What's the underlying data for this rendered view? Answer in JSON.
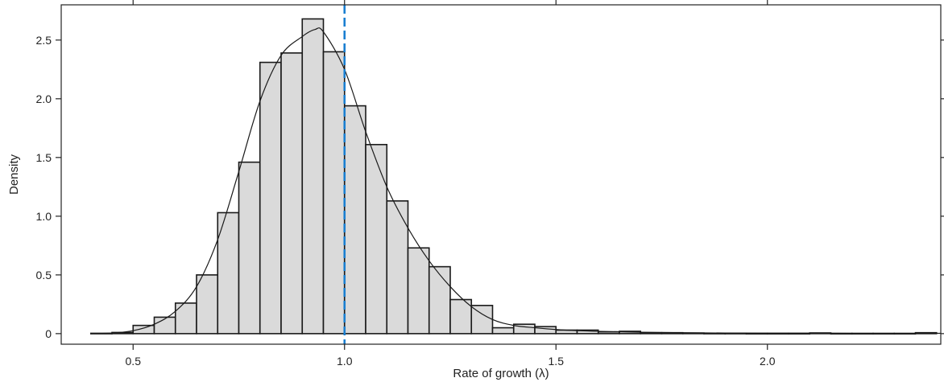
{
  "chart_data": {
    "type": "bar",
    "title": "",
    "xlabel": "Rate of growth (λ)",
    "ylabel": "Density",
    "xlim": [
      0.33,
      2.41
    ],
    "ylim": [
      -0.09,
      2.8
    ],
    "xticks": [
      {
        "value": 0.5,
        "label": "0.5"
      },
      {
        "value": 1.0,
        "label": "1.0"
      },
      {
        "value": 1.5,
        "label": "1.5"
      },
      {
        "value": 2.0,
        "label": "2.0"
      }
    ],
    "yticks": [
      {
        "value": 0,
        "label": "0"
      },
      {
        "value": 0.5,
        "label": "0.5"
      },
      {
        "value": 1.0,
        "label": "1.0"
      },
      {
        "value": 1.5,
        "label": "1.5"
      },
      {
        "value": 2.0,
        "label": "2.0"
      },
      {
        "value": 2.5,
        "label": "2.5"
      }
    ],
    "grid": false,
    "bin_width": 0.05,
    "bins": [
      {
        "x0": 0.4,
        "value": 0.003
      },
      {
        "x0": 0.45,
        "value": 0.01
      },
      {
        "x0": 0.5,
        "value": 0.07
      },
      {
        "x0": 0.55,
        "value": 0.14
      },
      {
        "x0": 0.6,
        "value": 0.26
      },
      {
        "x0": 0.65,
        "value": 0.5
      },
      {
        "x0": 0.7,
        "value": 1.03
      },
      {
        "x0": 0.75,
        "value": 1.46
      },
      {
        "x0": 0.8,
        "value": 2.31
      },
      {
        "x0": 0.85,
        "value": 2.39
      },
      {
        "x0": 0.9,
        "value": 2.68
      },
      {
        "x0": 0.95,
        "value": 2.4
      },
      {
        "x0": 1.0,
        "value": 1.94
      },
      {
        "x0": 1.05,
        "value": 1.61
      },
      {
        "x0": 1.1,
        "value": 1.13
      },
      {
        "x0": 1.15,
        "value": 0.73
      },
      {
        "x0": 1.2,
        "value": 0.57
      },
      {
        "x0": 1.25,
        "value": 0.29
      },
      {
        "x0": 1.3,
        "value": 0.24
      },
      {
        "x0": 1.35,
        "value": 0.05
      },
      {
        "x0": 1.4,
        "value": 0.08
      },
      {
        "x0": 1.45,
        "value": 0.06
      },
      {
        "x0": 1.5,
        "value": 0.03
      },
      {
        "x0": 1.55,
        "value": 0.03
      },
      {
        "x0": 1.6,
        "value": 0.015
      },
      {
        "x0": 1.65,
        "value": 0.02
      },
      {
        "x0": 1.7,
        "value": 0.008
      },
      {
        "x0": 1.75,
        "value": 0.008
      },
      {
        "x0": 1.8,
        "value": 0.005
      },
      {
        "x0": 1.85,
        "value": 0.003
      },
      {
        "x0": 1.9,
        "value": 0.003
      },
      {
        "x0": 1.95,
        "value": 0.002
      },
      {
        "x0": 2.0,
        "value": 0.002
      },
      {
        "x0": 2.05,
        "value": 0.002
      },
      {
        "x0": 2.1,
        "value": 0.006
      },
      {
        "x0": 2.15,
        "value": 0.002
      },
      {
        "x0": 2.2,
        "value": 0.002
      },
      {
        "x0": 2.25,
        "value": 0.002
      },
      {
        "x0": 2.3,
        "value": 0.002
      },
      {
        "x0": 2.35,
        "value": 0.008
      }
    ],
    "density_curve": [
      [
        0.4,
        0.0
      ],
      [
        0.45,
        0.005
      ],
      [
        0.5,
        0.025
      ],
      [
        0.55,
        0.08
      ],
      [
        0.6,
        0.19
      ],
      [
        0.65,
        0.4
      ],
      [
        0.7,
        0.8
      ],
      [
        0.75,
        1.38
      ],
      [
        0.8,
        1.98
      ],
      [
        0.85,
        2.37
      ],
      [
        0.9,
        2.53
      ],
      [
        0.93,
        2.59
      ],
      [
        0.95,
        2.57
      ],
      [
        1.0,
        2.25
      ],
      [
        1.05,
        1.72
      ],
      [
        1.1,
        1.25
      ],
      [
        1.15,
        0.9
      ],
      [
        1.2,
        0.62
      ],
      [
        1.25,
        0.4
      ],
      [
        1.3,
        0.23
      ],
      [
        1.35,
        0.12
      ],
      [
        1.4,
        0.07
      ],
      [
        1.45,
        0.05
      ],
      [
        1.5,
        0.035
      ],
      [
        1.55,
        0.025
      ],
      [
        1.6,
        0.02
      ],
      [
        1.7,
        0.012
      ],
      [
        1.8,
        0.008
      ],
      [
        1.9,
        0.005
      ],
      [
        2.0,
        0.004
      ],
      [
        2.1,
        0.004
      ],
      [
        2.2,
        0.003
      ],
      [
        2.3,
        0.003
      ],
      [
        2.41,
        0.003
      ]
    ],
    "reference_line": {
      "x": 1.0,
      "style": "dashed"
    },
    "colors": {
      "bar_fill": "#dadada",
      "bar_stroke": "#1a1a1a",
      "curve": "#1a1a1a",
      "reference_line": "#1a7fd1",
      "axis": "#222222"
    }
  }
}
